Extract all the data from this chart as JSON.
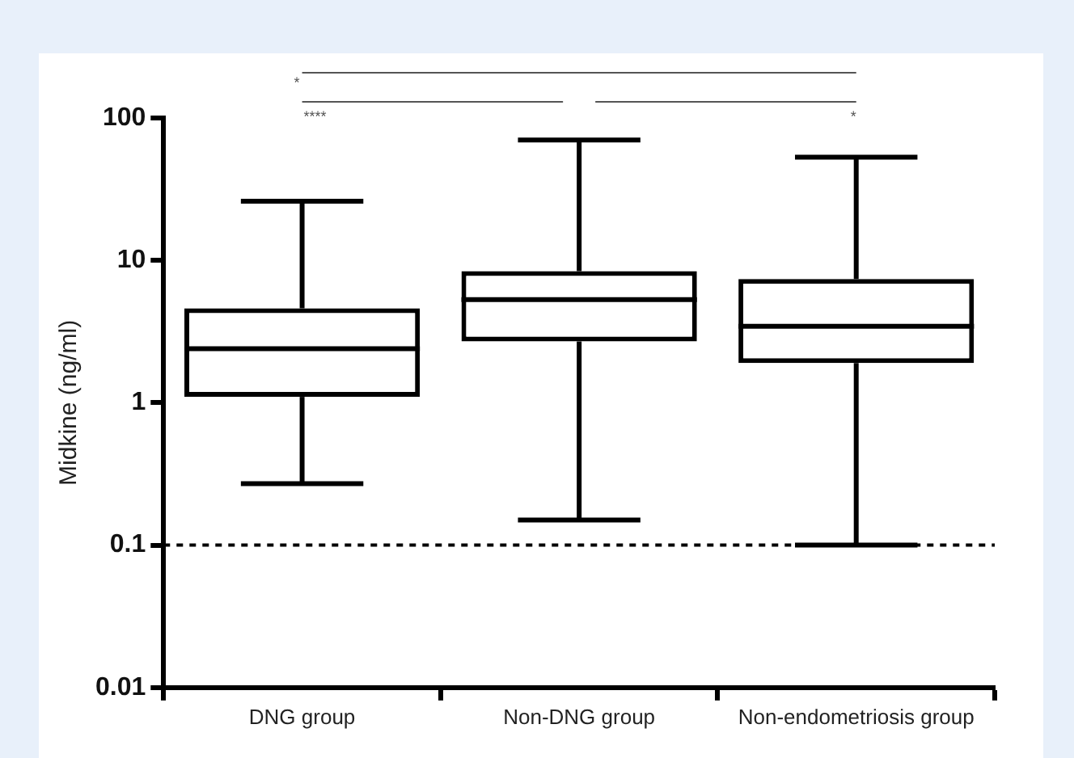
{
  "chart_data": {
    "type": "box",
    "ylabel": "Midkine (ng/ml)",
    "categories": [
      "DNG group",
      "Non-DNG group",
      "Non-endometriosis group"
    ],
    "boxes": [
      {
        "low": 0.27,
        "q1": 1.1,
        "median": 2.4,
        "q3": 4.6,
        "high": 26
      },
      {
        "low": 0.15,
        "q1": 2.7,
        "median": 5.3,
        "q3": 8.4,
        "high": 70
      },
      {
        "low": 0.1,
        "q1": 1.9,
        "median": 3.45,
        "q3": 7.4,
        "high": 53
      }
    ],
    "color": "#000000",
    "log": true,
    "ylim": [
      0.01,
      100
    ],
    "yticks": [
      0.01,
      0.1,
      1,
      10,
      100
    ],
    "ref_lines": [
      {
        "axis": "y",
        "value": 0.1,
        "line_style": "dashed",
        "color": "#000000"
      }
    ],
    "annotations": [
      "*",
      "****",
      "*"
    ],
    "grid": false,
    "legend": false
  }
}
